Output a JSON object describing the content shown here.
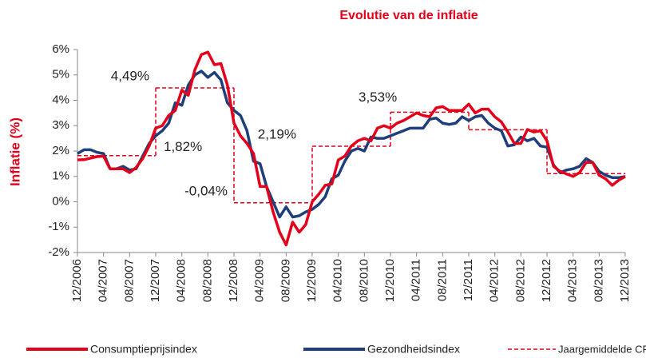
{
  "chart_data": {
    "type": "line",
    "title": "Evolutie van de inflatie",
    "y_label": "Inflatie (%)",
    "categories": [
      "12/2006",
      null,
      null,
      null,
      "04/2007",
      null,
      null,
      null,
      "08/2007",
      null,
      null,
      null,
      "12/2007",
      null,
      null,
      null,
      "04/2008",
      null,
      null,
      null,
      "08/2008",
      null,
      null,
      null,
      "12/2008",
      null,
      null,
      null,
      "04/2009",
      null,
      null,
      null,
      "08/2009",
      null,
      null,
      null,
      "12/2009",
      null,
      null,
      null,
      "04/2010",
      null,
      null,
      null,
      "08/2010",
      null,
      null,
      null,
      "12/2010",
      null,
      null,
      null,
      "04/2011",
      null,
      null,
      null,
      "08/2011",
      null,
      null,
      null,
      "12/2011",
      null,
      null,
      null,
      "04/2012",
      null,
      null,
      null,
      "08/2012",
      null,
      null,
      null,
      "12/2012",
      null,
      null,
      null,
      "04/2013",
      null,
      null,
      null,
      "08/2013",
      null,
      null,
      null,
      "12/2013"
    ],
    "series": [
      {
        "name": "Consumptieprijsindex",
        "color": "#e3001b",
        "values": [
          1.65,
          1.66,
          1.72,
          1.78,
          1.8,
          1.3,
          1.3,
          1.3,
          1.15,
          1.35,
          1.7,
          2.2,
          2.9,
          3.0,
          3.4,
          3.6,
          4.4,
          4.2,
          5.2,
          5.8,
          5.9,
          5.4,
          5.45,
          4.6,
          3.1,
          2.6,
          2.3,
          1.9,
          0.6,
          0.6,
          -0.4,
          -1.2,
          -1.7,
          -0.8,
          -1.2,
          -0.9,
          0.0,
          0.3,
          0.65,
          0.7,
          1.65,
          1.8,
          2.2,
          2.4,
          2.5,
          2.4,
          2.9,
          3.0,
          2.9,
          3.1,
          3.2,
          3.35,
          3.5,
          3.4,
          3.35,
          3.7,
          3.75,
          3.6,
          3.6,
          3.6,
          3.85,
          3.5,
          3.65,
          3.65,
          3.35,
          3.15,
          2.75,
          2.3,
          2.3,
          2.85,
          2.75,
          2.8,
          2.4,
          1.4,
          1.2,
          1.1,
          1.0,
          1.15,
          1.55,
          1.55,
          1.05,
          0.9,
          0.65,
          0.85,
          1.0
        ]
      },
      {
        "name": "Gezondheidsindex",
        "color": "#1f3f7a",
        "values": [
          1.9,
          2.05,
          2.05,
          1.95,
          1.9,
          1.3,
          1.3,
          1.4,
          1.25,
          1.3,
          1.8,
          2.3,
          2.6,
          2.8,
          3.1,
          3.9,
          3.8,
          4.6,
          5.0,
          5.15,
          4.9,
          5.1,
          4.8,
          3.9,
          3.6,
          3.4,
          2.8,
          1.6,
          1.5,
          0.6,
          0.0,
          -0.6,
          -0.2,
          -0.6,
          -0.55,
          -0.4,
          -0.3,
          -0.1,
          0.2,
          0.9,
          1.05,
          1.6,
          2.0,
          2.1,
          2.0,
          2.55,
          2.5,
          2.5,
          2.6,
          2.7,
          2.8,
          2.9,
          2.9,
          2.9,
          3.25,
          3.3,
          3.1,
          3.05,
          3.1,
          3.35,
          3.2,
          3.35,
          3.4,
          3.1,
          2.9,
          2.8,
          2.2,
          2.25,
          2.55,
          2.4,
          2.5,
          2.2,
          2.15,
          1.45,
          1.15,
          1.25,
          1.3,
          1.4,
          1.7,
          1.55,
          1.2,
          1.05,
          0.95,
          0.95,
          1.0
        ]
      }
    ],
    "averages": {
      "name": "Jaargemiddelde CPI",
      "color": "#e3001b",
      "values": [
        1.82,
        4.49,
        -0.04,
        2.19,
        3.53,
        2.84,
        1.11
      ],
      "value_labels": [
        "1,82%",
        "4,49%",
        "-0,04%",
        "2,19%",
        "3,53%",
        null,
        null
      ]
    },
    "ylim": [
      -2,
      6
    ],
    "yticks": [
      {
        "value": -2,
        "label": "-2%"
      },
      {
        "value": -1,
        "label": "-1%"
      },
      {
        "value": 0,
        "label": "0%"
      },
      {
        "value": 1,
        "label": "1%"
      },
      {
        "value": 2,
        "label": "2%"
      },
      {
        "value": 3,
        "label": "3%"
      },
      {
        "value": 4,
        "label": "4%"
      },
      {
        "value": 5,
        "label": "5%"
      },
      {
        "value": 6,
        "label": "6%"
      }
    ],
    "grid": false,
    "legend": "bottom"
  }
}
